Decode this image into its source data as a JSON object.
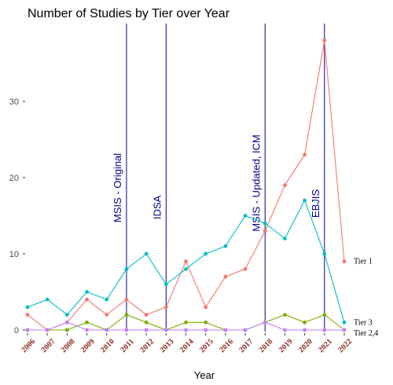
{
  "chart_data": {
    "type": "line",
    "title": "Number of Studies by Tier over Year",
    "xlabel": "Year",
    "ylabel": "",
    "x": [
      2006,
      2007,
      2008,
      2009,
      2010,
      2011,
      2012,
      2013,
      2014,
      2015,
      2016,
      2017,
      2018,
      2019,
      2020,
      2021,
      2022
    ],
    "xlim": [
      2006,
      2022
    ],
    "ylim": [
      0,
      40
    ],
    "yticks": [
      0,
      10,
      20,
      30
    ],
    "grid": false,
    "series": [
      {
        "name": "Tier 1",
        "color": "#f8766d",
        "values": [
          2,
          0,
          1,
          4,
          2,
          4,
          2,
          3,
          9,
          3,
          7,
          8,
          13,
          19,
          23,
          38,
          9
        ]
      },
      {
        "name": "Tier 3",
        "color": "#00bfc4",
        "values": [
          3,
          4,
          2,
          5,
          4,
          8,
          10,
          6,
          8,
          10,
          11,
          15,
          14,
          12,
          17,
          10,
          1
        ]
      },
      {
        "name": "",
        "color": "#7cae00",
        "values": [
          0,
          0,
          0,
          1,
          0,
          2,
          1,
          0,
          1,
          1,
          0,
          0,
          1,
          2,
          1,
          2,
          0
        ]
      },
      {
        "name": "Tier 2,4",
        "color": "#c77cff",
        "values": [
          0,
          0,
          1,
          0,
          0,
          0,
          0,
          0,
          0,
          0,
          0,
          0,
          1,
          0,
          0,
          0,
          0
        ]
      }
    ],
    "vlines": [
      {
        "x": 2011,
        "label": "MSIS - Original",
        "color": "#00008b"
      },
      {
        "x": 2013,
        "label": "IDSA",
        "color": "#00008b"
      },
      {
        "x": 2018,
        "label": "MSIS - Updated,  ICM",
        "color": "#00008b"
      },
      {
        "x": 2021,
        "label": "EBJIS",
        "color": "#00008b"
      }
    ]
  }
}
